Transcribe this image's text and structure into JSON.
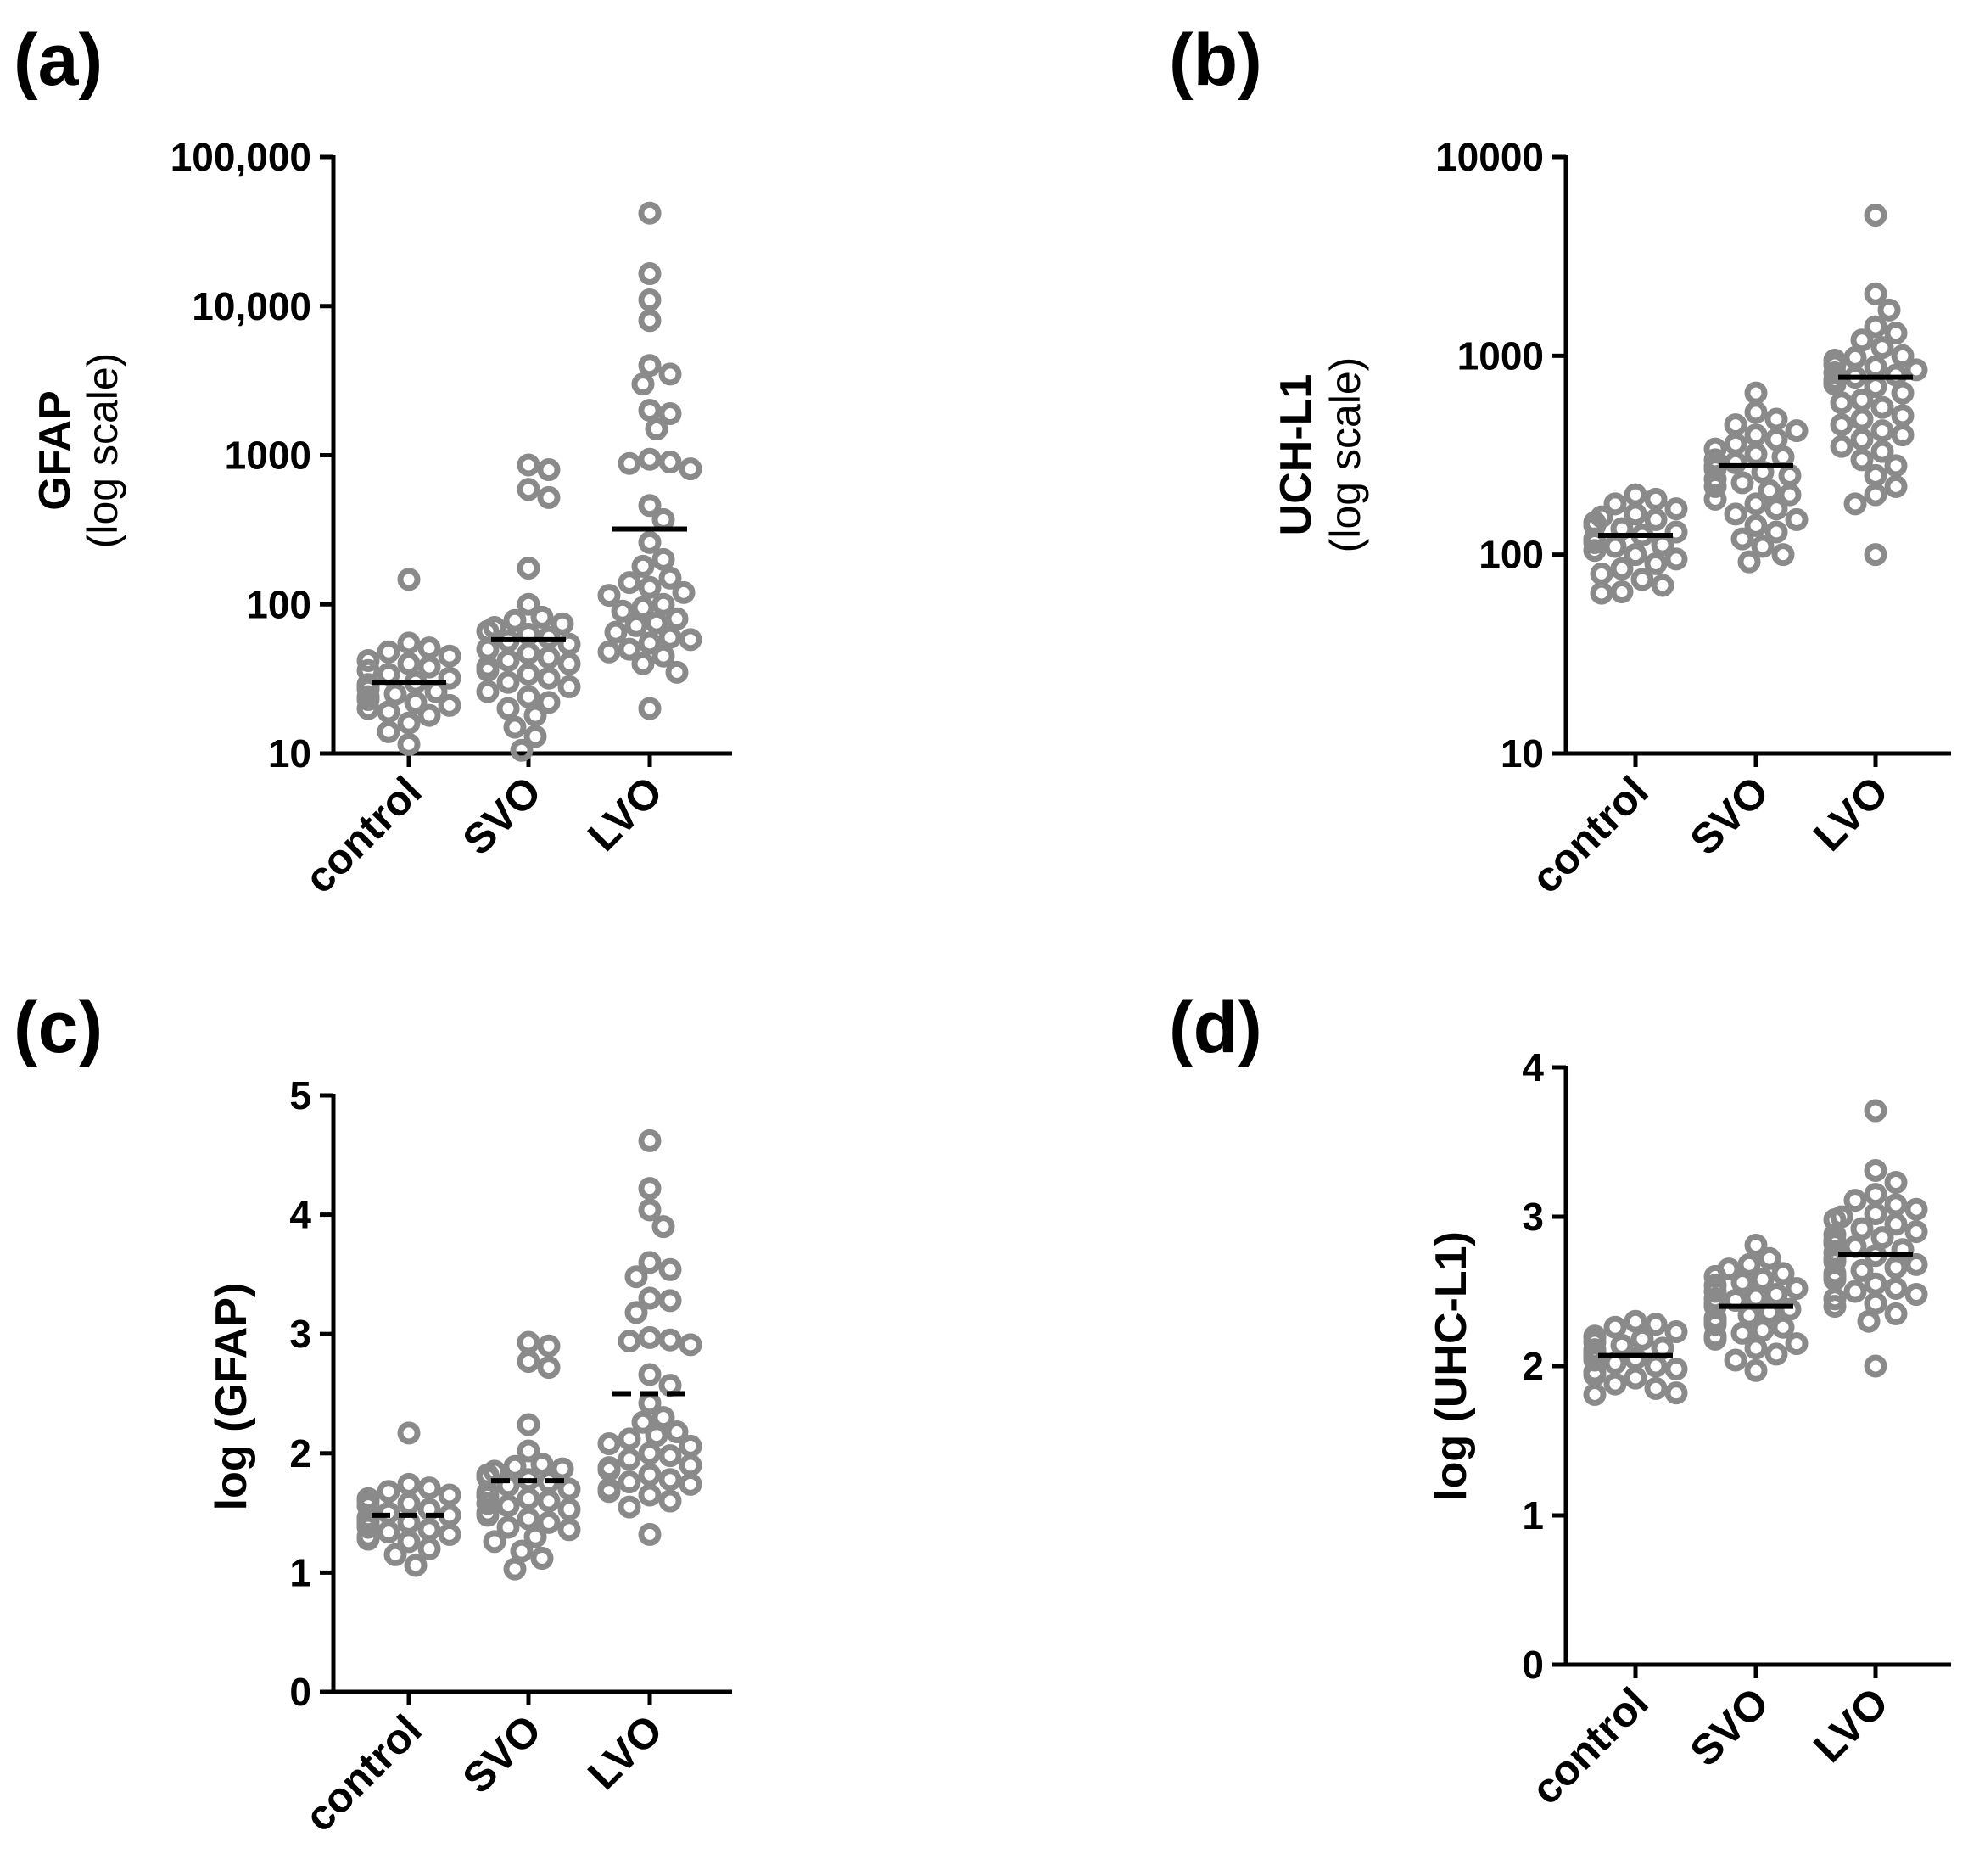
{
  "figure": {
    "marker_color": "#8a8a8a",
    "axis_color": "#000000",
    "median_color": "#000000"
  },
  "chart_data": [
    {
      "id": "a",
      "panel_label": "(a)",
      "type": "scatter",
      "subtype": "dot-strip",
      "scale": "log",
      "ylabel": "GFAP",
      "ylabel_sub": "(log scale)",
      "ylim": [
        10,
        100000
      ],
      "yticks": [
        10,
        100,
        1000,
        10000,
        100000
      ],
      "ytick_labels": [
        "10",
        "100",
        "1000",
        "10,000",
        "100,000"
      ],
      "categories": [
        "control",
        "SVO",
        "LVO"
      ],
      "medians": [
        30,
        58,
        320
      ],
      "median_style": "solid",
      "series": [
        {
          "name": "control",
          "values": [
            147,
            55,
            51,
            48,
            45,
            42,
            40,
            38,
            36,
            34,
            32,
            30,
            29,
            28,
            27,
            26,
            25,
            24,
            23,
            22,
            21,
            20,
            19,
            18,
            16,
            14,
            11.5
          ]
        },
        {
          "name": "SVO",
          "values": [
            860,
            800,
            590,
            520,
            175,
            100,
            82,
            78,
            74,
            70,
            66,
            63,
            60,
            57,
            54,
            50,
            47,
            44,
            42,
            40,
            38,
            36,
            34,
            32,
            30,
            28,
            26,
            24,
            22,
            20,
            18,
            15,
            13,
            10.5
          ]
        },
        {
          "name": "LVO",
          "values": [
            42000,
            16500,
            11000,
            8000,
            4000,
            3500,
            3000,
            2000,
            1900,
            1500,
            940,
            900,
            880,
            810,
            460,
            370,
            260,
            200,
            180,
            150,
            140,
            130,
            120,
            115,
            100,
            95,
            90,
            80,
            75,
            72,
            65,
            60,
            58,
            55,
            50,
            48,
            45,
            40,
            35,
            20
          ]
        }
      ]
    },
    {
      "id": "b",
      "panel_label": "(b)",
      "type": "scatter",
      "subtype": "dot-strip",
      "scale": "log",
      "ylabel": "UCH-L1",
      "ylabel_sub": "(log scale)",
      "ylim": [
        10,
        10000
      ],
      "yticks": [
        10,
        100,
        1000,
        10000
      ],
      "ytick_labels": [
        "10",
        "100",
        "1000",
        "10000"
      ],
      "categories": [
        "control",
        "SVO",
        "LVO"
      ],
      "medians": [
        125,
        280,
        780
      ],
      "median_style": "solid",
      "series": [
        {
          "name": "control",
          "values": [
            200,
            190,
            180,
            170,
            160,
            155,
            150,
            145,
            140,
            135,
            130,
            125,
            120,
            118,
            115,
            112,
            110,
            105,
            100,
            95,
            90,
            85,
            80,
            75,
            70,
            65,
            64
          ]
        },
        {
          "name": "SVO",
          "values": [
            650,
            520,
            480,
            450,
            420,
            400,
            380,
            360,
            340,
            320,
            310,
            300,
            290,
            280,
            270,
            260,
            250,
            240,
            230,
            220,
            210,
            200,
            190,
            180,
            170,
            160,
            150,
            140,
            130,
            120,
            110,
            100,
            92
          ]
        },
        {
          "name": "LVO",
          "values": [
            5100,
            2050,
            1700,
            1400,
            1300,
            1200,
            1100,
            1000,
            980,
            950,
            900,
            880,
            850,
            820,
            800,
            780,
            760,
            740,
            720,
            700,
            650,
            600,
            580,
            550,
            500,
            480,
            450,
            420,
            400,
            380,
            350,
            330,
            300,
            280,
            250,
            220,
            200,
            180,
            100
          ]
        }
      ]
    },
    {
      "id": "c",
      "panel_label": "(c)",
      "type": "scatter",
      "subtype": "dot-strip",
      "scale": "linear",
      "ylabel": "log (GFAP)",
      "ylim": [
        0,
        5
      ],
      "yticks": [
        0,
        1,
        2,
        3,
        4,
        5
      ],
      "ytick_labels": [
        "0",
        "1",
        "2",
        "3",
        "4",
        "5"
      ],
      "categories": [
        "control",
        "SVO",
        "LVO"
      ],
      "medians": [
        1.48,
        1.77,
        2.5
      ],
      "median_style": "dashed",
      "series": [
        {
          "name": "control",
          "values": [
            2.17,
            1.74,
            1.71,
            1.68,
            1.65,
            1.62,
            1.6,
            1.58,
            1.56,
            1.53,
            1.5,
            1.48,
            1.46,
            1.45,
            1.43,
            1.42,
            1.4,
            1.38,
            1.36,
            1.34,
            1.32,
            1.3,
            1.28,
            1.26,
            1.2,
            1.15,
            1.06
          ]
        },
        {
          "name": "SVO",
          "values": [
            2.93,
            2.9,
            2.77,
            2.72,
            2.24,
            2.02,
            1.91,
            1.89,
            1.87,
            1.85,
            1.82,
            1.8,
            1.78,
            1.76,
            1.73,
            1.7,
            1.67,
            1.64,
            1.62,
            1.6,
            1.58,
            1.56,
            1.53,
            1.5,
            1.48,
            1.45,
            1.42,
            1.38,
            1.36,
            1.3,
            1.26,
            1.18,
            1.12,
            1.03
          ]
        },
        {
          "name": "LVO",
          "values": [
            4.62,
            4.22,
            4.04,
            3.9,
            3.6,
            3.54,
            3.48,
            3.3,
            3.28,
            3.18,
            2.97,
            2.95,
            2.94,
            2.91,
            2.66,
            2.57,
            2.42,
            2.3,
            2.26,
            2.18,
            2.15,
            2.12,
            2.08,
            2.06,
            2.0,
            1.98,
            1.95,
            1.9,
            1.88,
            1.86,
            1.82,
            1.78,
            1.76,
            1.74,
            1.7,
            1.68,
            1.65,
            1.6,
            1.55,
            1.32
          ]
        }
      ]
    },
    {
      "id": "d",
      "panel_label": "(d)",
      "type": "scatter",
      "subtype": "dot-strip",
      "scale": "linear",
      "ylabel": "log (UHC-L1)",
      "ylim": [
        0,
        4
      ],
      "yticks": [
        0,
        1,
        2,
        3,
        4
      ],
      "ytick_labels": [
        "0",
        "1",
        "2",
        "3",
        "4"
      ],
      "categories": [
        "control",
        "SVO",
        "LVO"
      ],
      "medians": [
        2.07,
        2.4,
        2.75
      ],
      "median_style": "solid",
      "series": [
        {
          "name": "control",
          "values": [
            2.3,
            2.28,
            2.26,
            2.23,
            2.2,
            2.19,
            2.18,
            2.16,
            2.14,
            2.12,
            2.11,
            2.1,
            2.08,
            2.07,
            2.06,
            2.05,
            2.04,
            2.02,
            2.0,
            1.98,
            1.96,
            1.94,
            1.92,
            1.88,
            1.85,
            1.82,
            1.81
          ]
        },
        {
          "name": "SVO",
          "values": [
            2.81,
            2.72,
            2.68,
            2.65,
            2.62,
            2.6,
            2.58,
            2.56,
            2.54,
            2.52,
            2.5,
            2.48,
            2.46,
            2.45,
            2.44,
            2.42,
            2.4,
            2.38,
            2.36,
            2.34,
            2.32,
            2.3,
            2.28,
            2.26,
            2.24,
            2.22,
            2.2,
            2.18,
            2.15,
            2.12,
            2.08,
            2.04,
            1.97
          ]
        },
        {
          "name": "LVO",
          "values": [
            3.71,
            3.31,
            3.23,
            3.15,
            3.11,
            3.08,
            3.05,
            3.02,
            3.0,
            2.98,
            2.95,
            2.92,
            2.9,
            2.88,
            2.86,
            2.84,
            2.82,
            2.8,
            2.78,
            2.76,
            2.74,
            2.72,
            2.7,
            2.68,
            2.66,
            2.64,
            2.62,
            2.6,
            2.58,
            2.55,
            2.52,
            2.5,
            2.48,
            2.45,
            2.42,
            2.4,
            2.35,
            2.3,
            2.0
          ]
        }
      ]
    }
  ]
}
